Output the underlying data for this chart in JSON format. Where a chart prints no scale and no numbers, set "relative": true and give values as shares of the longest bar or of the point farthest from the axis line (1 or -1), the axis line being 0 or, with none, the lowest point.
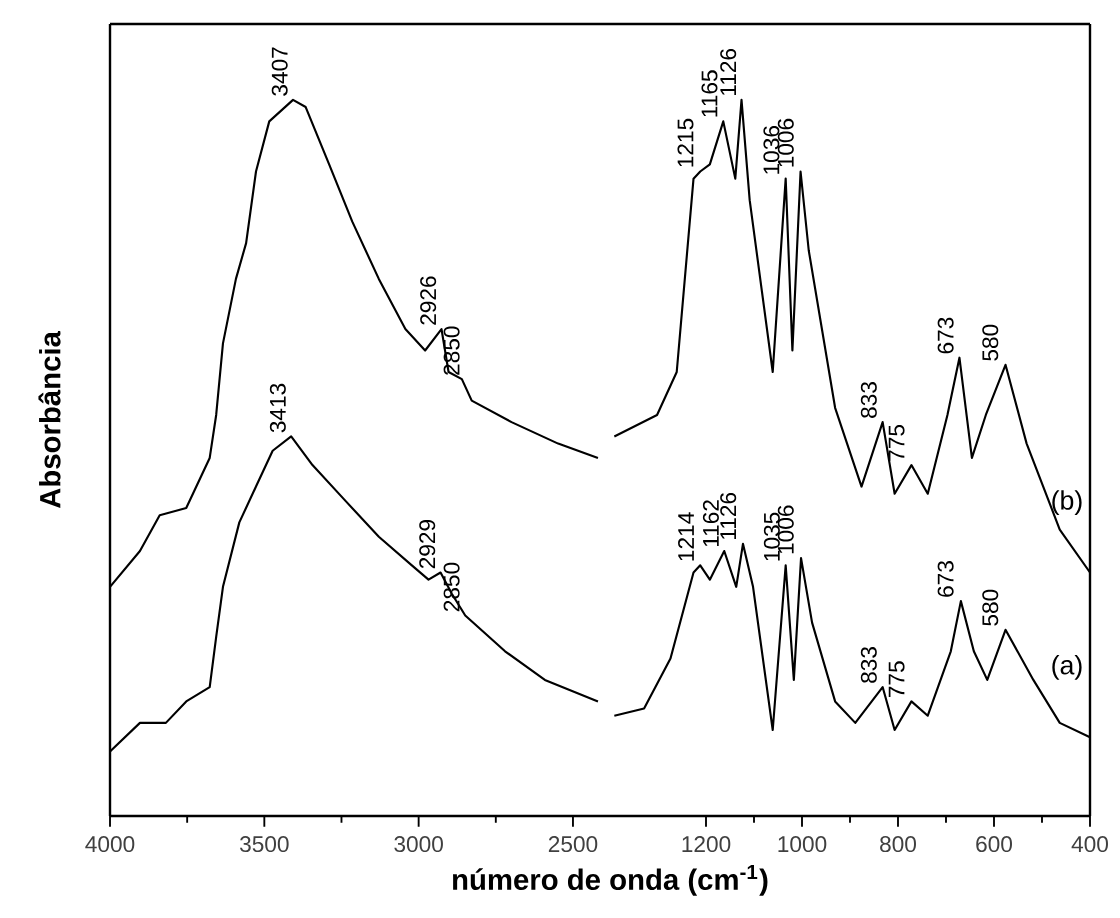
{
  "chart_data": [
    {
      "type": "line",
      "relative": true,
      "ylabel": "Absorbância",
      "xlabel": "número de onda (cm$^{-1}$)",
      "xlim": [
        4000,
        2380
      ],
      "xticks": [
        4000,
        3500,
        3000,
        2500
      ],
      "series": [
        {
          "color": "#000000",
          "x": [
            4000,
            3903,
            3839,
            3753,
            3677,
            3656,
            3634,
            3592,
            3559,
            3527,
            3484,
            3407,
            3366,
            3290,
            3215,
            3129,
            3043,
            2979,
            2926,
            2903,
            2860,
            2828,
            2699,
            2548,
            2419
          ],
          "values": [
            0.32,
            0.37,
            0.42,
            0.43,
            0.5,
            0.56,
            0.66,
            0.75,
            0.8,
            0.9,
            0.97,
            1.0,
            0.99,
            0.91,
            0.83,
            0.75,
            0.68,
            0.65,
            0.68,
            0.62,
            0.61,
            0.58,
            0.55,
            0.52,
            0.5
          ]
        },
        {
          "color": "#000000",
          "x": [
            4000,
            3903,
            3819,
            3753,
            3677,
            3656,
            3634,
            3581,
            3527,
            3473,
            3413,
            3344,
            3237,
            3129,
            3022,
            2968,
            2929,
            2892,
            2849,
            2720,
            2591,
            2419
          ],
          "values": [
            0.09,
            0.13,
            0.13,
            0.16,
            0.18,
            0.25,
            0.32,
            0.41,
            0.46,
            0.51,
            0.53,
            0.49,
            0.44,
            0.39,
            0.35,
            0.33,
            0.34,
            0.31,
            0.28,
            0.23,
            0.19,
            0.16
          ]
        }
      ],
      "annotations": [
        {
          "text": "3407",
          "x": 3407,
          "y": 1.0
        },
        {
          "text": "2926",
          "x": 2926,
          "y": 0.68
        },
        {
          "text": "2850",
          "x": 2850,
          "y": 0.61
        },
        {
          "text": "3413",
          "x": 3413,
          "y": 0.53
        },
        {
          "text": "2929",
          "x": 2929,
          "y": 0.34
        },
        {
          "text": "2850",
          "x": 2850,
          "y": 0.28
        }
      ]
    },
    {
      "type": "line",
      "relative": true,
      "xlim": [
        1400,
        400
      ],
      "xticks": [
        1200,
        1000,
        800,
        600,
        400
      ],
      "series": [
        {
          "name": "(b)",
          "color": "#000000",
          "x": [
            1391,
            1302,
            1261,
            1226,
            1212,
            1192,
            1164,
            1139,
            1126,
            1109,
            1061,
            1034,
            1020,
            1003,
            986,
            931,
            876,
            832,
            807,
            772,
            738,
            697,
            672,
            646,
            617,
            576,
            532,
            463,
            400
          ],
          "values": [
            0.53,
            0.56,
            0.62,
            0.89,
            0.9,
            0.91,
            0.97,
            0.89,
            1.0,
            0.86,
            0.62,
            0.89,
            0.65,
            0.9,
            0.79,
            0.57,
            0.46,
            0.55,
            0.45,
            0.49,
            0.45,
            0.56,
            0.64,
            0.5,
            0.56,
            0.63,
            0.52,
            0.4,
            0.34
          ]
        },
        {
          "name": "(a)",
          "color": "#000000",
          "x": [
            1391,
            1329,
            1274,
            1226,
            1212,
            1192,
            1162,
            1137,
            1123,
            1102,
            1061,
            1034,
            1017,
            1002,
            979,
            931,
            889,
            832,
            807,
            772,
            738,
            690,
            669,
            642,
            614,
            576,
            518,
            463,
            400
          ],
          "values": [
            0.14,
            0.15,
            0.22,
            0.34,
            0.35,
            0.33,
            0.37,
            0.32,
            0.38,
            0.32,
            0.12,
            0.35,
            0.19,
            0.36,
            0.27,
            0.16,
            0.13,
            0.18,
            0.12,
            0.16,
            0.14,
            0.23,
            0.3,
            0.23,
            0.19,
            0.26,
            0.19,
            0.13,
            0.11
          ]
        }
      ],
      "annotations": [
        {
          "text": "1215",
          "x": 1215,
          "y": 0.9
        },
        {
          "text": "1165",
          "x": 1165,
          "y": 0.97
        },
        {
          "text": "1126",
          "x": 1126,
          "y": 1.0
        },
        {
          "text": "1036",
          "x": 1036,
          "y": 0.89
        },
        {
          "text": "1006",
          "x": 1006,
          "y": 0.9
        },
        {
          "text": "833",
          "x": 833,
          "y": 0.55
        },
        {
          "text": "775",
          "x": 775,
          "y": 0.49
        },
        {
          "text": "673",
          "x": 673,
          "y": 0.64
        },
        {
          "text": "580",
          "x": 580,
          "y": 0.63
        },
        {
          "text": "1214",
          "x": 1214,
          "y": 0.35
        },
        {
          "text": "1162",
          "x": 1162,
          "y": 0.37
        },
        {
          "text": "1126",
          "x": 1126,
          "y": 0.38
        },
        {
          "text": "1035",
          "x": 1035,
          "y": 0.35
        },
        {
          "text": "1006",
          "x": 1006,
          "y": 0.36
        },
        {
          "text": "833",
          "x": 833,
          "y": 0.18
        },
        {
          "text": "775",
          "x": 775,
          "y": 0.16
        },
        {
          "text": "673",
          "x": 673,
          "y": 0.3
        },
        {
          "text": "580",
          "x": 580,
          "y": 0.26
        }
      ]
    }
  ]
}
